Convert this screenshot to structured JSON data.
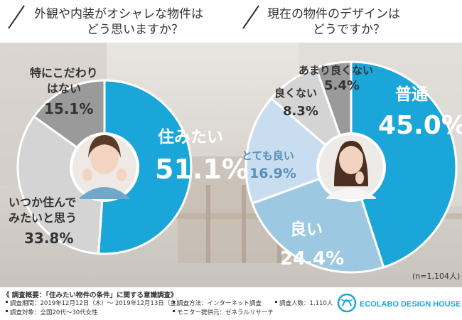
{
  "colors": {
    "primary": "#1aa6d8",
    "medium": "#9cc8e2",
    "light": "#c8def0",
    "gray_dark": "#999999",
    "gray_light": "#d4d4d4",
    "text_dark": "#333333",
    "text_light": "#5a8fb8"
  },
  "chart_data": [
    {
      "type": "pie",
      "title": "外観や内装がオシャレな物件は どう思いますか？",
      "title_lines": [
        "外観や内装がオシャレな物件は",
        "どう思いますか？"
      ],
      "slices": [
        {
          "label": "住みたい",
          "value": 51.1,
          "display": "51.1%",
          "color": "#1aa6d8"
        },
        {
          "label": "いつか住んでみたいと思う",
          "label_lines": [
            "いつか住んで",
            "みたいと思う"
          ],
          "value": 33.8,
          "display": "33.8%",
          "color": "#d4d4d4"
        },
        {
          "label": "特にこだわりはない",
          "label_lines": [
            "特にこだわり",
            "はない"
          ],
          "value": 15.1,
          "display": "15.1%",
          "color": "#9a9a9a"
        }
      ]
    },
    {
      "type": "pie",
      "title": "現在の物件のデザインは どうですか？",
      "title_lines": [
        "現在の物件のデザインは",
        "どうですか？"
      ],
      "slices": [
        {
          "label": "普通",
          "value": 45.0,
          "display": "45.0%",
          "color": "#1aa6d8"
        },
        {
          "label": "良い",
          "value": 24.4,
          "display": "24.4%",
          "color": "#9cc8e2"
        },
        {
          "label": "とても良い",
          "value": 16.9,
          "display": "16.9%",
          "color": "#c8def0"
        },
        {
          "label": "良くない",
          "value": 8.3,
          "display": "8.3%",
          "color": "#d4d4d4"
        },
        {
          "label": "あまり良くない",
          "value": 5.4,
          "display": "5.4%",
          "color": "#9a9a9a"
        }
      ]
    }
  ],
  "sample_note": "(n=1,104人)",
  "footer": {
    "survey_title": "《 調査概要：「住みたい物件の条件」に関する意識調査》",
    "items": [
      "調査期間：2019年12月12日（木）～ 2019年12月13日（金）",
      "調査方法：インターネット調査",
      "調査人数：1,110人",
      "調査対象：全国20代～30代女性",
      "モニター提供元：ゼネラルリサーチ"
    ],
    "logo_text": "ECOLABO DESIGN HOUSE"
  }
}
